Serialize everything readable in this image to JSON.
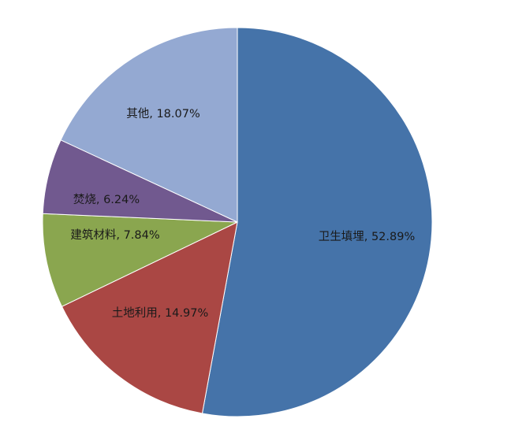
{
  "chart_data": {
    "type": "pie",
    "title": "",
    "start": "12 o'clock, clockwise",
    "legend": "none",
    "slices": [
      {
        "label": "卫生填埋",
        "value": 52.89,
        "text": "卫生填埋, 52.89%",
        "color": "#4573A9"
      },
      {
        "label": "土地利用",
        "value": 14.97,
        "text": "土地利用, 14.97%",
        "color": "#AA4744"
      },
      {
        "label": "建筑材料",
        "value": 7.84,
        "text": "建筑材料, 7.84%",
        "color": "#8AA64F"
      },
      {
        "label": "焚烧",
        "value": 6.24,
        "text": "焚烧, 6.24%",
        "color": "#71598F"
      },
      {
        "label": "其他",
        "value": 18.07,
        "text": "其他, 18.07%",
        "color": "#94A9D2"
      }
    ]
  }
}
